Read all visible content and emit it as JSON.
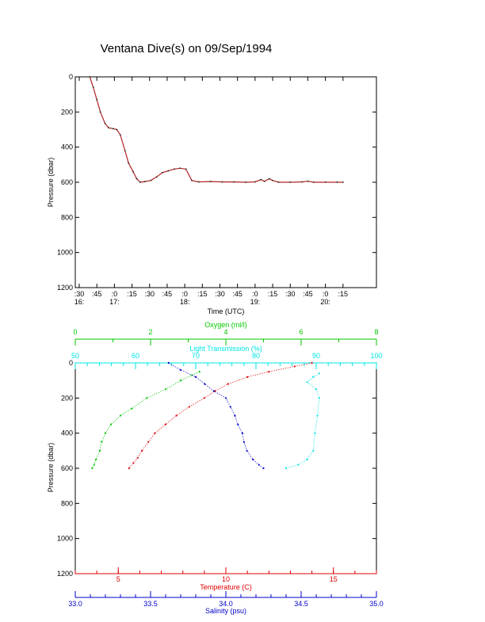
{
  "title": "Ventana Dive(s) on 09/Sep/1994",
  "colors": {
    "axes": "#000000",
    "depth_trace": "#b22222",
    "oxygen": "#00c800",
    "light": "#00e5e5",
    "temperature": "#e00000",
    "salinity": "#0000cc"
  },
  "chart_data": [
    {
      "type": "line",
      "title": "",
      "xlabel": "Time (UTC)",
      "ylabel": "Pressure (dbar)",
      "ylim": [
        1200,
        0
      ],
      "xlim_hours": [
        16.5,
        20.5
      ],
      "x_tick_labels": [
        ":30",
        ":45",
        ":0",
        ":15",
        ":30",
        ":45",
        ":0",
        ":15",
        ":30",
        ":45",
        ":0",
        ":15",
        ":30",
        ":45",
        ":0",
        ":15"
      ],
      "hour_labels": [
        {
          "label": "16:",
          "x": "16:30"
        },
        {
          "label": "17:",
          "x": "17:00"
        },
        {
          "label": "18:",
          "x": "18:00"
        },
        {
          "label": "19:",
          "x": "19:00"
        },
        {
          "label": "20:",
          "x": "20:00"
        }
      ],
      "y_tick_labels": [
        "0",
        "200",
        "400",
        "600",
        "800",
        "1000",
        "1200"
      ],
      "series": [
        {
          "color": "depth_trace",
          "x": [
            "16:39",
            "16:42",
            "16:45",
            "16:48",
            "16:52",
            "16:55",
            "16:59",
            "17:02",
            "17:05",
            "17:09",
            "17:12",
            "17:16",
            "17:19",
            "17:22",
            "17:26",
            "17:31",
            "17:36",
            "17:41",
            "17:46",
            "17:51",
            "17:56",
            "18:01",
            "18:06",
            "18:12",
            "18:22",
            "18:32",
            "18:42",
            "18:52",
            "19:00",
            "19:05",
            "19:08",
            "19:12",
            "19:15",
            "19:20",
            "19:30",
            "19:40",
            "19:45",
            "19:50",
            "20:00",
            "20:10",
            "20:15"
          ],
          "y": [
            0,
            60,
            130,
            200,
            265,
            290,
            295,
            300,
            330,
            420,
            490,
            540,
            580,
            600,
            596,
            590,
            570,
            545,
            535,
            525,
            520,
            525,
            590,
            598,
            596,
            598,
            598,
            600,
            598,
            585,
            595,
            580,
            590,
            600,
            600,
            598,
            594,
            600,
            600,
            600,
            600
          ]
        }
      ]
    },
    {
      "type": "scatter",
      "title": "",
      "ylabel": "Pressure (dbar)",
      "ylim": [
        1200,
        0
      ],
      "axes": {
        "oxygen": {
          "label": "Oxygen (ml/l)",
          "range": [
            0,
            8
          ],
          "ticks": [
            "0",
            "2",
            "4",
            "6",
            "8"
          ]
        },
        "light": {
          "label": "Light Transmission (%)",
          "range": [
            50,
            100
          ],
          "ticks": [
            "50",
            "60",
            "70",
            "80",
            "90",
            "100"
          ]
        },
        "temperature": {
          "label": "Temperature (C)",
          "range": [
            3,
            17
          ],
          "ticks": [
            "5",
            "10",
            "15"
          ]
        },
        "salinity": {
          "label": "Salinity (psu)",
          "range": [
            33.0,
            35.0
          ],
          "ticks": [
            "33.0",
            "33.5",
            "34.0",
            "34.5",
            "35.0"
          ]
        }
      },
      "y_tick_labels": [
        "0",
        "200",
        "400",
        "600",
        "800",
        "1000",
        "1200"
      ],
      "series": [
        {
          "axis": "oxygen",
          "color": "oxygen",
          "x": [
            3.3,
            3.1,
            2.8,
            2.4,
            1.9,
            1.5,
            1.2,
            0.95,
            0.8,
            0.7,
            0.65,
            0.55,
            0.5,
            0.45
          ],
          "y": [
            50,
            70,
            100,
            150,
            200,
            260,
            300,
            350,
            400,
            450,
            500,
            550,
            580,
            600
          ]
        },
        {
          "axis": "light",
          "color": "light",
          "x": [
            90.5,
            89.5,
            88.5,
            90.0,
            90.5,
            90.2,
            89.8,
            89.5,
            88.5,
            87.0,
            85.0
          ],
          "y": [
            60,
            80,
            110,
            150,
            200,
            300,
            400,
            500,
            550,
            580,
            600
          ]
        },
        {
          "axis": "temperature",
          "color": "temperature",
          "x": [
            14.0,
            13.2,
            12.0,
            11.0,
            10.1,
            9.5,
            9.0,
            8.3,
            7.7,
            7.2,
            6.7,
            6.4,
            6.1,
            5.9,
            5.7,
            5.5
          ],
          "y": [
            0,
            20,
            50,
            80,
            120,
            160,
            200,
            250,
            300,
            350,
            400,
            450,
            500,
            540,
            570,
            600
          ]
        },
        {
          "axis": "salinity",
          "color": "salinity",
          "x": [
            33.62,
            33.7,
            33.8,
            33.86,
            33.92,
            34.0,
            34.03,
            34.06,
            34.08,
            34.11,
            34.12,
            34.14,
            34.18,
            34.22,
            34.25
          ],
          "y": [
            0,
            40,
            80,
            120,
            160,
            200,
            250,
            300,
            350,
            400,
            450,
            500,
            550,
            580,
            600
          ]
        }
      ]
    }
  ]
}
